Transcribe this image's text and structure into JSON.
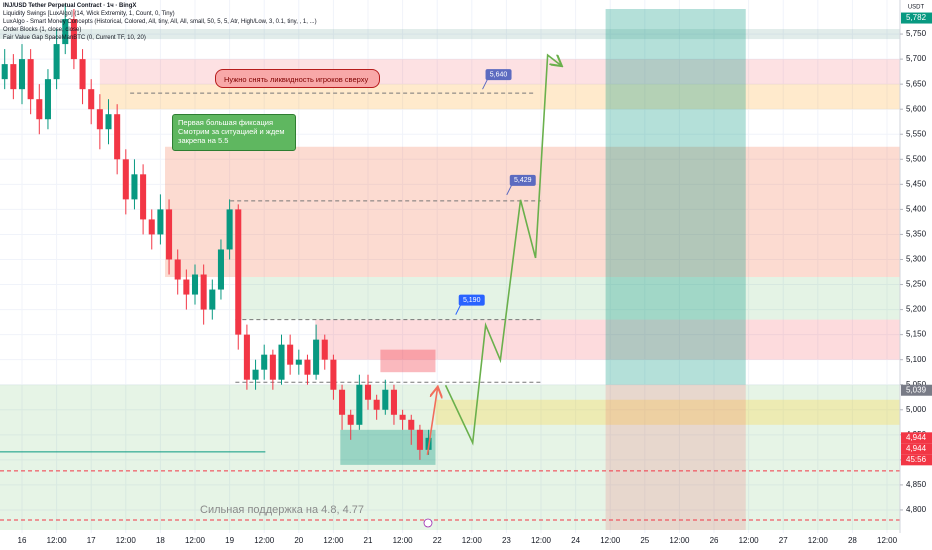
{
  "chart_data": {
    "type": "candlestick",
    "title": "INJ/USD Tether Perpetual Contract · 1ч · BingX",
    "indicators": [
      "Liquidity Swings [LuxAlgo] (14, Wick Extremity, 1, Count, 0, Tiny)",
      "LuxAlgo - Smart Money Concepts (Historical, Colored, All, tiny, All, All, small, 50, 5, 5, Atr, High/Low, 3, 0.1, tiny, , 1, ...)",
      "Order Blocks (1, close, close)",
      "Fair Value Gap SpaceManBTC (0, Current TF, 10, 20)"
    ],
    "currency": "USDT",
    "up_color": "#089981",
    "down_color": "#f23645",
    "x": [
      -6,
      -3,
      0,
      3,
      6,
      9,
      12,
      15,
      18,
      21,
      24,
      27,
      30,
      33,
      36,
      39,
      42,
      45,
      48,
      51,
      54,
      57,
      60,
      63,
      66,
      69,
      72,
      75,
      78,
      81,
      84,
      87,
      90,
      93,
      96,
      99,
      102,
      105,
      108,
      111,
      114,
      117,
      120,
      123,
      126,
      129,
      132,
      135,
      138,
      141
    ],
    "open": [
      5660,
      5690,
      5640,
      5700,
      5620,
      5580,
      5660,
      5730,
      5780,
      5700,
      5640,
      5600,
      5560,
      5590,
      5500,
      5420,
      5470,
      5380,
      5350,
      5400,
      5300,
      5260,
      5230,
      5270,
      5200,
      5240,
      5320,
      5400,
      5150,
      5060,
      5080,
      5110,
      5060,
      5130,
      5090,
      5100,
      5070,
      5140,
      5100,
      5040,
      4990,
      4970,
      5050,
      5020,
      5000,
      5040,
      4990,
      4980,
      4960,
      4920
    ],
    "high": [
      5720,
      5710,
      5730,
      5720,
      5650,
      5680,
      5760,
      5810,
      5800,
      5720,
      5660,
      5630,
      5620,
      5610,
      5520,
      5500,
      5490,
      5400,
      5430,
      5420,
      5320,
      5280,
      5290,
      5290,
      5260,
      5340,
      5420,
      5410,
      5170,
      5100,
      5130,
      5120,
      5150,
      5150,
      5120,
      5110,
      5170,
      5150,
      5110,
      5050,
      5000,
      5070,
      5070,
      5030,
      5060,
      5050,
      5000,
      4990,
      4970,
      4960
    ],
    "low": [
      5640,
      5620,
      5610,
      5590,
      5550,
      5560,
      5640,
      5710,
      5680,
      5610,
      5570,
      5520,
      5530,
      5470,
      5390,
      5400,
      5350,
      5320,
      5330,
      5270,
      5230,
      5200,
      5210,
      5170,
      5180,
      5220,
      5300,
      5120,
      5040,
      5040,
      5060,
      5040,
      5050,
      5070,
      5070,
      5050,
      5060,
      5080,
      5020,
      4960,
      4940,
      4960,
      5000,
      4980,
      4990,
      4970,
      4960,
      4930,
      4900,
      4910
    ],
    "close": [
      5690,
      5640,
      5700,
      5620,
      5580,
      5660,
      5730,
      5780,
      5700,
      5640,
      5600,
      5560,
      5590,
      5500,
      5420,
      5470,
      5380,
      5350,
      5400,
      5300,
      5260,
      5230,
      5270,
      5200,
      5240,
      5320,
      5400,
      5150,
      5060,
      5080,
      5110,
      5060,
      5130,
      5090,
      5100,
      5070,
      5140,
      5100,
      5040,
      4990,
      4970,
      5050,
      5020,
      5000,
      5040,
      4990,
      4980,
      4960,
      4920,
      4944
    ],
    "xlim": [
      -7.63,
      304.5
    ],
    "xticks": [
      {
        "value": 0,
        "label": "16"
      },
      {
        "value": 12,
        "label": "12:00"
      },
      {
        "value": 24,
        "label": "17"
      },
      {
        "value": 36,
        "label": "12:00"
      },
      {
        "value": 48,
        "label": "18"
      },
      {
        "value": 60,
        "label": "12:00"
      },
      {
        "value": 72,
        "label": "19"
      },
      {
        "value": 84,
        "label": "12:00"
      },
      {
        "value": 96,
        "label": "20"
      },
      {
        "value": 108,
        "label": "12:00"
      },
      {
        "value": 120,
        "label": "21"
      },
      {
        "value": 132,
        "label": "12:00"
      },
      {
        "value": 144,
        "label": "22"
      },
      {
        "value": 156,
        "label": "12:00"
      },
      {
        "value": 168,
        "label": "23"
      },
      {
        "value": 180,
        "label": "12:00"
      },
      {
        "value": 192,
        "label": "24"
      },
      {
        "value": 204,
        "label": "12:00"
      },
      {
        "value": 216,
        "label": "25"
      },
      {
        "value": 228,
        "label": "12:00"
      },
      {
        "value": 240,
        "label": "26"
      },
      {
        "value": 252,
        "label": "12:00"
      },
      {
        "value": 264,
        "label": "27"
      },
      {
        "value": 276,
        "label": "12:00"
      },
      {
        "value": 288,
        "label": "28"
      },
      {
        "value": 300,
        "label": "12:00"
      }
    ],
    "ylim": [
      4754,
      5818
    ],
    "yticks": [
      {
        "value": 4800,
        "label": "4,800"
      },
      {
        "value": 4850,
        "label": "4,850"
      },
      {
        "value": 4900,
        "label": "4,900"
      },
      {
        "value": 4950,
        "label": "4,950"
      },
      {
        "value": 5000,
        "label": "5,000"
      },
      {
        "value": 5050,
        "label": "5,050"
      },
      {
        "value": 5100,
        "label": "5,100"
      },
      {
        "value": 5150,
        "label": "5,150"
      },
      {
        "value": 5200,
        "label": "5,200"
      },
      {
        "value": 5250,
        "label": "5,250"
      },
      {
        "value": 5300,
        "label": "5,300"
      },
      {
        "value": 5350,
        "label": "5,350"
      },
      {
        "value": 5400,
        "label": "5,400"
      },
      {
        "value": 5450,
        "label": "5,450"
      },
      {
        "value": 5500,
        "label": "5,500"
      },
      {
        "value": 5550,
        "label": "5,550"
      },
      {
        "value": 5600,
        "label": "5,600"
      },
      {
        "value": 5650,
        "label": "5,650"
      },
      {
        "value": 5700,
        "label": "5,700"
      },
      {
        "value": 5750,
        "label": "5,750"
      }
    ],
    "grid": true,
    "zones": [
      {
        "y": [
          5740,
          5760
        ],
        "color": "rgba(120,170,160,0.22)"
      },
      {
        "from": 27,
        "y": [
          5650,
          5700
        ],
        "color": "rgba(242,54,69,0.15)"
      },
      {
        "from": 27,
        "y": [
          5600,
          5650
        ],
        "color": "rgba(255,152,0,0.2)"
      },
      {
        "from": 49.6,
        "y": [
          5265,
          5525
        ],
        "color": "rgba(242,110,70,0.25)"
      },
      {
        "from": 75.7,
        "y": [
          5180,
          5265
        ],
        "color": "rgba(76,175,80,0.15)"
      },
      {
        "from": 101.7,
        "y": [
          5100,
          5180
        ],
        "color": "rgba(242,54,69,0.18)"
      },
      {
        "y": [
          4760,
          5050
        ],
        "color": "rgba(76,175,80,0.14)"
      },
      {
        "from": 143.4,
        "y": [
          4970,
          5020
        ],
        "color": "rgba(255,215,64,0.3)"
      },
      {
        "from": 110.4,
        "to": 143.4,
        "y": [
          4890,
          4960
        ],
        "color": "rgba(8,153,129,0.35)"
      },
      {
        "from": 124.3,
        "to": 143.4,
        "y": [
          5075,
          5120
        ],
        "color": "rgba(242,54,69,0.35)"
      },
      {
        "from": 202.4,
        "to": 251,
        "y": [
          5050,
          5800
        ],
        "color": "rgba(8,153,129,0.3)"
      },
      {
        "from": 202.4,
        "to": 251,
        "y": [
          4760,
          5050
        ],
        "color": "rgba(242,54,69,0.15)"
      }
    ],
    "levels": [
      {
        "value": 5632,
        "from": 37.5,
        "to": 178,
        "color": "#777777",
        "dashed": true
      },
      {
        "value": 5417,
        "from": 72.2,
        "to": 179.9,
        "color": "#777777",
        "dashed": true
      },
      {
        "value": 5180,
        "from": 74,
        "to": 179.9,
        "color": "#777777",
        "dashed": true
      },
      {
        "value": 5055,
        "from": 74,
        "to": 179.9,
        "color": "#777777",
        "dashed": true
      },
      {
        "value": 4878,
        "color": "#f23645",
        "dashed": true
      },
      {
        "value": 4780,
        "color": "#f23645",
        "dashed": true
      },
      {
        "value": 4916,
        "to": 84.4,
        "color": "#089981",
        "dashed": false
      }
    ],
    "price_labels": [
      {
        "value": 5640,
        "label": "5,640",
        "t": 161.8,
        "color": "#5c6bc0"
      },
      {
        "value": 5429,
        "label": "5,429",
        "t": 170.2,
        "color": "#5c6bc0"
      },
      {
        "value": 5190,
        "label": "5,190",
        "t": 152.5,
        "color": "#2962ff"
      }
    ],
    "forecast": {
      "color": "#6ab04c",
      "x": [
        146.9,
        156.3,
        160.8,
        165.9,
        172.9,
        178.1,
        182.3,
        186.8
      ],
      "values": [
        5049,
        4934,
        5169,
        5099,
        5419,
        5303,
        5708,
        5688
      ]
    },
    "reaction": {
      "color": "#f26d5b",
      "x": [
        140.6,
        144.1
      ],
      "values": [
        4910,
        5043
      ]
    },
    "price_tags": [
      {
        "value": 5782,
        "label": "5,782",
        "color": "#089981"
      },
      {
        "value": 5039,
        "label": "5,039",
        "color": "#787b86"
      },
      {
        "value": 4944,
        "label": "4,944",
        "color": "#f23645"
      },
      {
        "value": 4944,
        "label": "4,944",
        "color": "#f23645"
      }
    ],
    "countdown": "45:56",
    "annotations": [
      "Нужно снять ликвидность игроков сверху",
      "Первая большая фиксация Смотрим за ситуацией и ждем закрепа на 5.5",
      "Сильная поддержка на 4.8, 4.77"
    ]
  }
}
